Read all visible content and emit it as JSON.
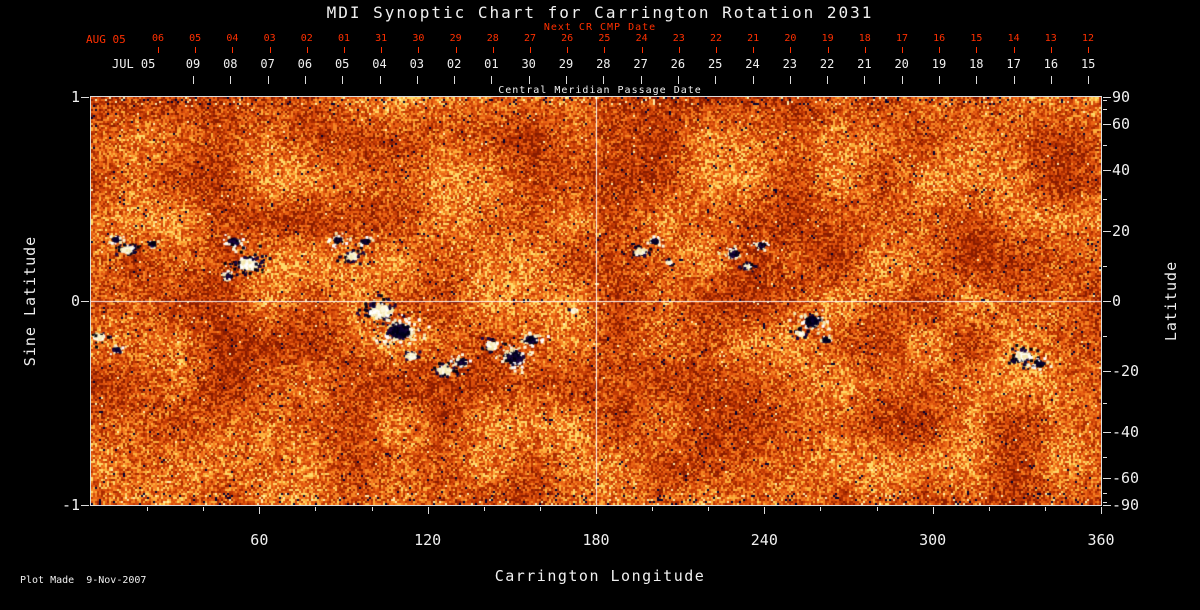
{
  "title": "MDI Synoptic Chart for Carrington Rotation 2031",
  "footer": {
    "plot_made": "Plot Made  9-Nov-2007"
  },
  "colors": {
    "background": "#000000",
    "axis_red": "#ff3000",
    "axis_white": "#f0f0f0"
  },
  "axes": {
    "top_next_cr": {
      "label": "Next CR CMP Date",
      "month_label": "AUG 05",
      "day_ticks": [
        "06",
        "05",
        "04",
        "03",
        "02",
        "01",
        "31",
        "30",
        "29",
        "28",
        "27",
        "26",
        "25",
        "24",
        "23",
        "22",
        "21",
        "20",
        "19",
        "18",
        "17",
        "16",
        "15",
        "14",
        "13",
        "12"
      ]
    },
    "top_cmp": {
      "label": "Central Meridian Passage Date",
      "month_label": "JUL 05",
      "day_ticks": [
        "09",
        "08",
        "07",
        "06",
        "05",
        "04",
        "03",
        "02",
        "01",
        "30",
        "29",
        "28",
        "27",
        "26",
        "25",
        "24",
        "23",
        "22",
        "21",
        "20",
        "19",
        "18",
        "17",
        "16",
        "15"
      ]
    },
    "left": {
      "label": "Sine Latitude",
      "tick_values": [
        1,
        0,
        -1
      ]
    },
    "right": {
      "label": "Latitude",
      "tick_values": [
        90,
        60,
        40,
        20,
        0,
        -20,
        -40,
        -60,
        -90
      ],
      "minor_tick_values": [
        80,
        70,
        50,
        30,
        10,
        -10,
        -30,
        -50,
        -70,
        -80
      ]
    },
    "bottom": {
      "label": "Carrington Longitude",
      "tick_values": [
        60,
        120,
        180,
        240,
        300,
        360
      ]
    }
  },
  "chart_data": {
    "type": "heatmap",
    "title": "MDI Synoptic Chart for Carrington Rotation 2031",
    "xlabel": "Carrington Longitude",
    "ylabel_left": "Sine Latitude",
    "ylabel_right": "Latitude",
    "xlim": [
      0,
      360
    ],
    "ylim_sine_latitude": [
      -1,
      1
    ],
    "crosshair": {
      "longitude": 180,
      "sine_latitude": 0
    },
    "description": "Full-rotation photospheric magnetogram: speckled orange/red quiet-sun field with bipolar active regions (white = positive polarity, dark navy = negative polarity), white crosshair at longitude 180 and equator.",
    "palette": [
      "#8a1c00",
      "#a82a00",
      "#c23a04",
      "#d84e0c",
      "#ea6414",
      "#f58424",
      "#fdae3c",
      "#ffd968"
    ],
    "colors": {
      "positive": [
        "#ffffff",
        "#fdf6d8",
        "#f4e7ae"
      ],
      "negative": [
        "#00001e",
        "#0b0231",
        "#1d063f",
        "#02000e"
      ],
      "dark_speckle": "#000030",
      "light_speckle": "#ffefa8"
    },
    "active_regions": [
      {
        "lon": 9,
        "sin_lat": 0.3,
        "polarity": "negative",
        "size": 4
      },
      {
        "lon": 13,
        "sin_lat": 0.25,
        "polarity": "positive",
        "size": 6
      },
      {
        "lon": 22,
        "sin_lat": 0.28,
        "polarity": "negative",
        "size": 4
      },
      {
        "lon": 3,
        "sin_lat": -0.18,
        "polarity": "positive",
        "size": 5
      },
      {
        "lon": 9,
        "sin_lat": -0.24,
        "polarity": "negative",
        "size": 4
      },
      {
        "lon": 51,
        "sin_lat": 0.29,
        "polarity": "negative",
        "size": 6
      },
      {
        "lon": 56,
        "sin_lat": 0.18,
        "polarity": "positive",
        "size": 9
      },
      {
        "lon": 49,
        "sin_lat": 0.12,
        "polarity": "negative",
        "size": 4
      },
      {
        "lon": 88,
        "sin_lat": 0.3,
        "polarity": "negative",
        "size": 5
      },
      {
        "lon": 93,
        "sin_lat": 0.22,
        "polarity": "positive",
        "size": 6
      },
      {
        "lon": 98,
        "sin_lat": 0.29,
        "polarity": "negative",
        "size": 4
      },
      {
        "lon": 103,
        "sin_lat": -0.05,
        "polarity": "positive",
        "size": 10
      },
      {
        "lon": 110,
        "sin_lat": -0.15,
        "polarity": "negative",
        "size": 11
      },
      {
        "lon": 114,
        "sin_lat": -0.27,
        "polarity": "positive",
        "size": 5
      },
      {
        "lon": 126,
        "sin_lat": -0.34,
        "polarity": "positive",
        "size": 7
      },
      {
        "lon": 132,
        "sin_lat": -0.3,
        "polarity": "negative",
        "size": 5
      },
      {
        "lon": 143,
        "sin_lat": -0.22,
        "polarity": "positive",
        "size": 6
      },
      {
        "lon": 151,
        "sin_lat": -0.28,
        "polarity": "negative",
        "size": 9
      },
      {
        "lon": 157,
        "sin_lat": -0.19,
        "polarity": "negative",
        "size": 6
      },
      {
        "lon": 172,
        "sin_lat": -0.05,
        "polarity": "positive",
        "size": 3
      },
      {
        "lon": 196,
        "sin_lat": 0.24,
        "polarity": "positive",
        "size": 5
      },
      {
        "lon": 201,
        "sin_lat": 0.29,
        "polarity": "negative",
        "size": 4
      },
      {
        "lon": 206,
        "sin_lat": 0.19,
        "polarity": "positive",
        "size": 3
      },
      {
        "lon": 229,
        "sin_lat": 0.23,
        "polarity": "negative",
        "size": 5
      },
      {
        "lon": 234,
        "sin_lat": 0.17,
        "polarity": "positive",
        "size": 4
      },
      {
        "lon": 239,
        "sin_lat": 0.27,
        "polarity": "negative",
        "size": 4
      },
      {
        "lon": 253,
        "sin_lat": -0.16,
        "polarity": "positive",
        "size": 4
      },
      {
        "lon": 257,
        "sin_lat": -0.1,
        "polarity": "negative",
        "size": 8
      },
      {
        "lon": 262,
        "sin_lat": -0.19,
        "polarity": "negative",
        "size": 4
      },
      {
        "lon": 332,
        "sin_lat": -0.27,
        "polarity": "positive",
        "size": 7
      },
      {
        "lon": 338,
        "sin_lat": -0.31,
        "polarity": "negative",
        "size": 5
      }
    ]
  }
}
